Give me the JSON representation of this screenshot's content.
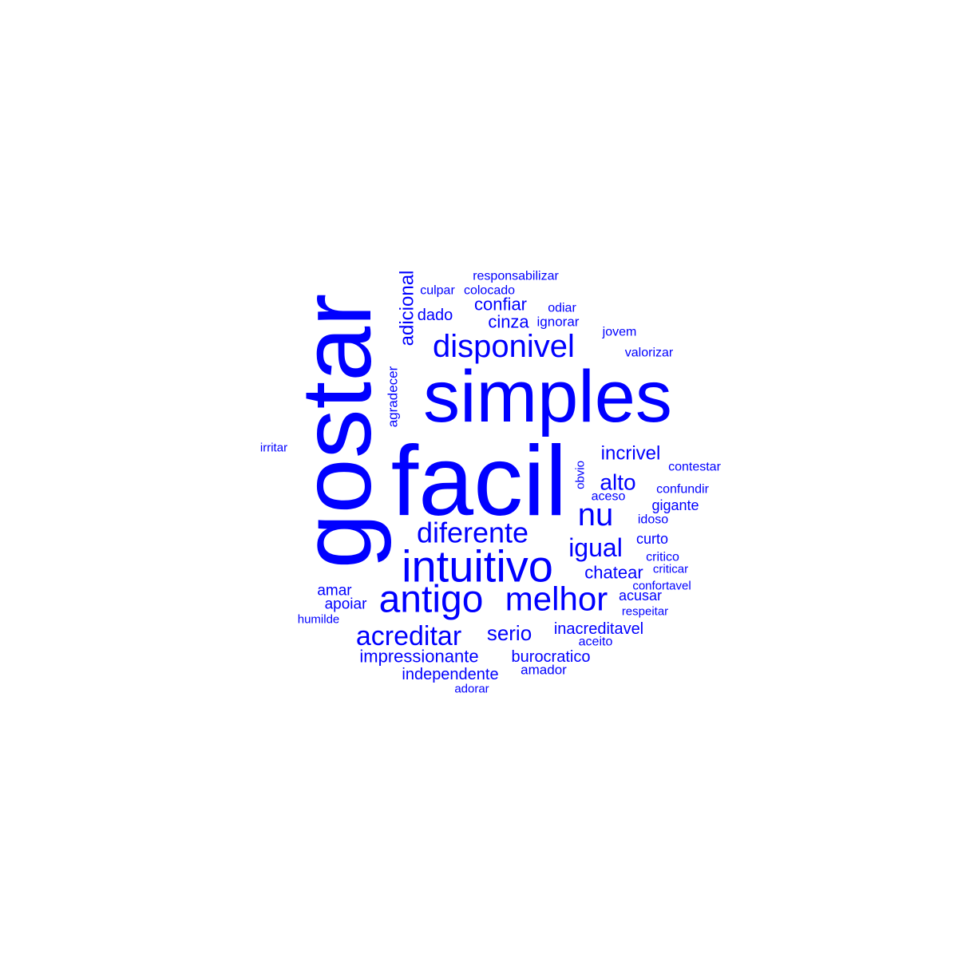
{
  "word_cloud": {
    "color": "#0000ff",
    "words": [
      "gostar",
      "facil",
      "simples",
      "intuitivo",
      "antigo",
      "melhor",
      "disponivel",
      "diferente",
      "acreditar",
      "nu",
      "igual",
      "alto",
      "incrivel",
      "serio",
      "confiar",
      "chatear",
      "cinza",
      "inacreditavel",
      "adicional",
      "impressionante",
      "burocratico",
      "independente",
      "dado",
      "amar",
      "apoiar",
      "acusar",
      "curto",
      "gigante",
      "ignorar",
      "amador",
      "odiar",
      "colocado",
      "responsabilizar",
      "culpar",
      "agradecer",
      "jovem",
      "valorizar",
      "contestar",
      "confundir",
      "idoso",
      "critico",
      "criticar",
      "confortavel",
      "respeitar",
      "aceito",
      "aceso",
      "obvio",
      "irritar",
      "humilde",
      "adorar"
    ]
  }
}
